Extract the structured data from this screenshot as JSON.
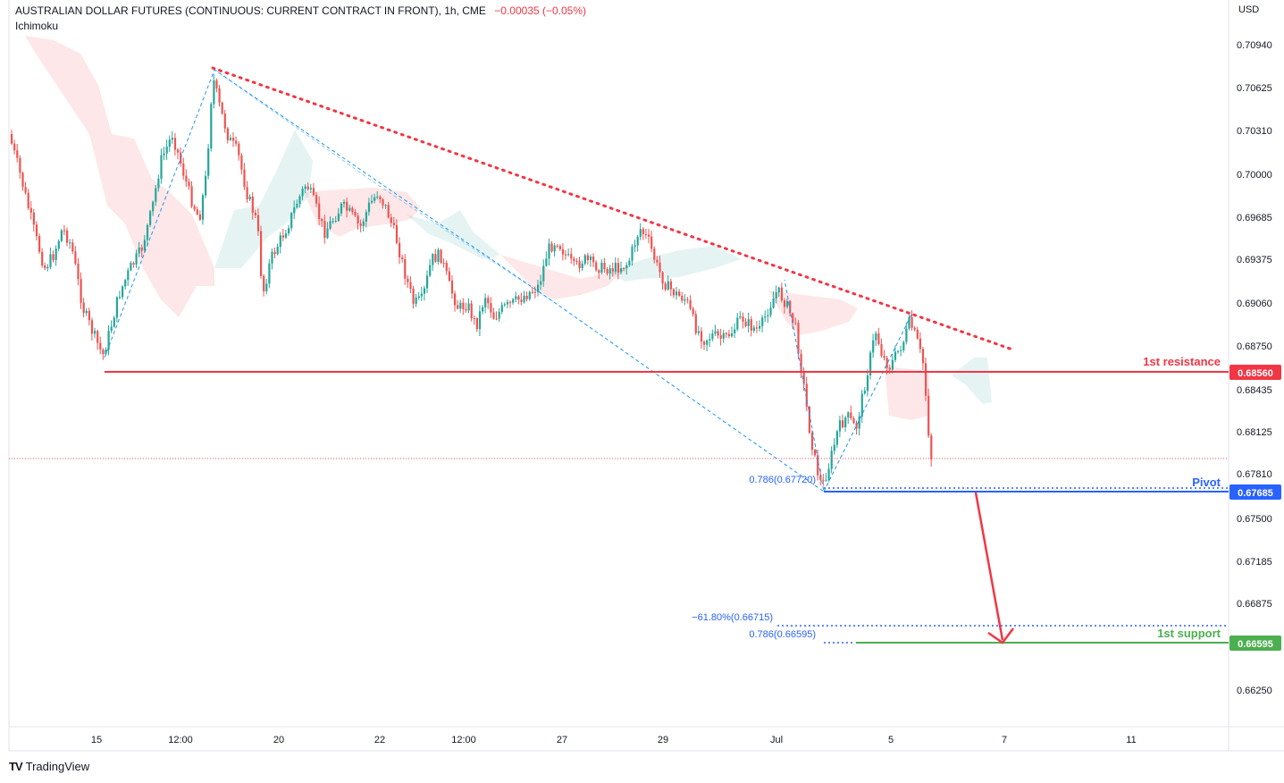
{
  "header": {
    "symbol": "AUSTRALIAN DOLLAR FUTURES (CONTINUOUS: CURRENT CONTRACT IN FRONT), 1h, CME",
    "change": "−0.00035 (−0.05%)",
    "indicator": "Ichimoku",
    "currency": "USD"
  },
  "brand": {
    "logo": "TV",
    "name": "TradingView"
  },
  "colors": {
    "up": "#26a69a",
    "down": "#ef5350",
    "resistance": "#f23645",
    "pivot": "#2962ff",
    "support": "#4caf50",
    "trendline": "#f23645",
    "fib": "#2196f3"
  },
  "chart_data": {
    "type": "candlestick",
    "y_axis": {
      "labels": [
        "0.70940",
        "0.70625",
        "0.70310",
        "0.70000",
        "0.69685",
        "0.69375",
        "0.69060",
        "0.68750",
        "0.68435",
        "0.68125",
        "0.67810",
        "0.67500",
        "0.67185",
        "0.66875",
        "0.66250"
      ],
      "range": [
        0.66,
        0.712
      ]
    },
    "x_axis": {
      "labels": [
        "15",
        "12:00",
        "20",
        "22",
        "12:00",
        "27",
        "29",
        "Jul",
        "5",
        "7",
        "11"
      ]
    },
    "levels": [
      {
        "name": "1st resistance",
        "price": "0.68560",
        "value": 0.6856,
        "color": "#f23645"
      },
      {
        "name": "Pivot",
        "price": "0.67685",
        "value": 0.67685,
        "color": "#2962ff"
      },
      {
        "name": "1st support",
        "price": "0.66595",
        "value": 0.66595,
        "color": "#4caf50"
      }
    ],
    "fib_labels": [
      {
        "text": "0.786(0.67720)",
        "value": 0.6772
      },
      {
        "text": "−61.80%(0.66715)",
        "value": 0.66715
      },
      {
        "text": "0.786(0.66595)",
        "value": 0.66595
      }
    ],
    "current_price": 0.6793
  }
}
